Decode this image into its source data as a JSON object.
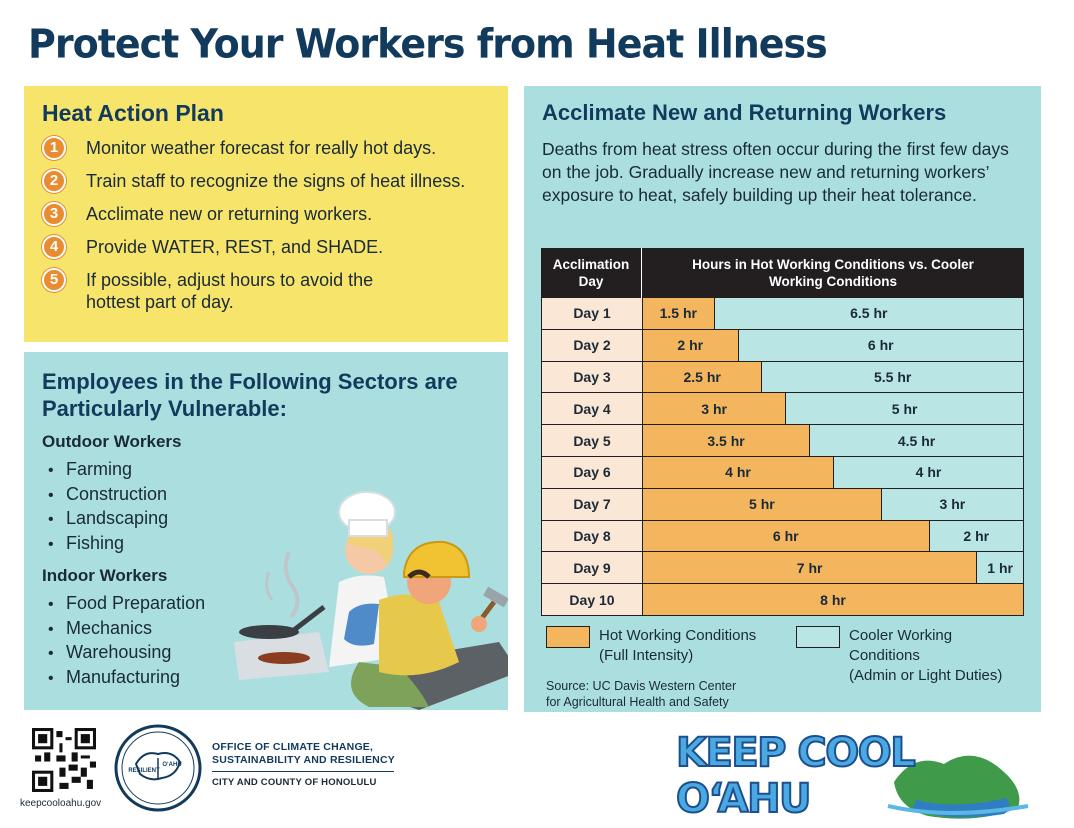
{
  "title": "Protect Your Workers from Heat Illness",
  "plan": {
    "heading": "Heat Action Plan",
    "steps": [
      {
        "num": "1",
        "text": "Monitor weather forecast for really hot days."
      },
      {
        "num": "2",
        "text": "Train staff to recognize the signs of heat illness."
      },
      {
        "num": "3",
        "text": "Acclimate new or returning workers."
      },
      {
        "num": "4",
        "text": "Provide WATER, REST, and SHADE."
      },
      {
        "num": "5",
        "text": "If possible, adjust hours to avoid the hottest part of day."
      }
    ]
  },
  "sectors": {
    "heading": "Employees in the Following Sectors are Particularly Vulnerable:",
    "outdoor_heading": "Outdoor Workers",
    "outdoor": [
      "Farming",
      "Construction",
      "Landscaping",
      "Fishing"
    ],
    "indoor_heading": "Indoor Workers",
    "indoor": [
      "Food Preparation",
      "Mechanics",
      "Warehousing",
      "Manufacturing"
    ]
  },
  "acclimate": {
    "heading": "Acclimate New and Returning Workers",
    "body": "Deaths from heat stress often occur during the first few days on the job. Gradually increase new and returning workers’ exposure to heat, safely building up their heat tolerance.",
    "col1": "Acclimation Day",
    "col2": "Hours in Hot Working Conditions vs. Cooler Working Conditions",
    "rows": [
      {
        "day": "Day 1",
        "hot": 1.5,
        "hot_label": "1.5 hr",
        "cool_label": "6.5 hr"
      },
      {
        "day": "Day 2",
        "hot": 2,
        "hot_label": "2 hr",
        "cool_label": "6 hr"
      },
      {
        "day": "Day 3",
        "hot": 2.5,
        "hot_label": "2.5 hr",
        "cool_label": "5.5 hr"
      },
      {
        "day": "Day 4",
        "hot": 3,
        "hot_label": "3 hr",
        "cool_label": "5 hr"
      },
      {
        "day": "Day 5",
        "hot": 3.5,
        "hot_label": "3.5 hr",
        "cool_label": "4.5 hr"
      },
      {
        "day": "Day 6",
        "hot": 4,
        "hot_label": "4 hr",
        "cool_label": "4 hr"
      },
      {
        "day": "Day 7",
        "hot": 5,
        "hot_label": "5 hr",
        "cool_label": "3 hr"
      },
      {
        "day": "Day 8",
        "hot": 6,
        "hot_label": "6 hr",
        "cool_label": "2 hr"
      },
      {
        "day": "Day 9",
        "hot": 7,
        "hot_label": "7 hr",
        "cool_label": "1 hr"
      },
      {
        "day": "Day 10",
        "hot": 8,
        "hot_label": "8 hr",
        "cool_label": ""
      }
    ],
    "total_hours": 8,
    "legend_hot_1": "Hot Working Conditions",
    "legend_hot_2": "(Full Intensity)",
    "legend_cool_1": "Cooler Working",
    "legend_cool_2": "Conditions",
    "legend_cool_3": "(Admin or Light Duties)",
    "source_1": "Source: UC Davis Western Center",
    "source_2": "for Agricultural Health and Safety",
    "hot_color": "#f3b55d",
    "cool_color": "#b9e5e5"
  },
  "footer": {
    "website": "keepcooloahu.gov",
    "seal_left": "RESILIENT",
    "seal_right": "O‘AHU",
    "office_1": "OFFICE OF CLIMATE CHANGE,",
    "office_2": "SUSTAINABILITY AND RESILIENCY",
    "city": "CITY AND COUNTY OF HONOLULU",
    "logo": "KEEP COOL O‘AHU"
  }
}
